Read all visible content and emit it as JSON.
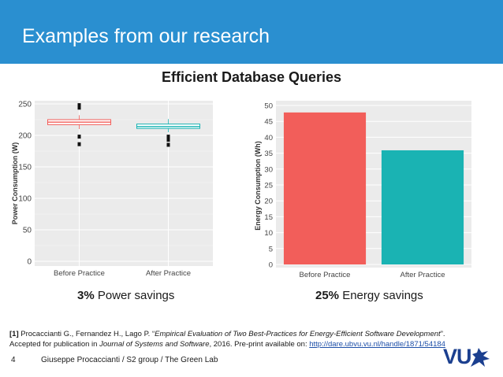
{
  "header": {
    "title": "Examples from our research"
  },
  "subtitle": "Efficient Database Queries",
  "colors": {
    "header_bg": "#2a8fd0",
    "before": "#f25e5a",
    "after": "#1ab3b3",
    "panel": "#ebebeb"
  },
  "chart_data": [
    {
      "type": "box",
      "title": "",
      "xlabel": "",
      "ylabel": "Power Consumption (W)",
      "ylim": [
        0,
        250
      ],
      "yticks": [
        0,
        50,
        100,
        150,
        200,
        250
      ],
      "grid": true,
      "categories": [
        "Before Practice",
        "After Practice"
      ],
      "series": [
        {
          "name": "Before Practice",
          "q1": 217,
          "median": 221,
          "q3": 225,
          "whisker_low": 210,
          "whisker_high": 232,
          "outliers": [
            186,
            198,
            244,
            248
          ]
        },
        {
          "name": "After Practice",
          "q1": 211,
          "median": 214,
          "q3": 218,
          "whisker_low": 205,
          "whisker_high": 226,
          "outliers": [
            185,
            193,
            198
          ]
        }
      ]
    },
    {
      "type": "bar",
      "title": "",
      "xlabel": "",
      "ylabel": "Energy Consumption (Wh)",
      "ylim": [
        0,
        50
      ],
      "yticks": [
        0,
        5,
        10,
        15,
        20,
        25,
        30,
        35,
        40,
        45,
        50
      ],
      "grid": true,
      "categories": [
        "Before Practice",
        "After Practice"
      ],
      "values": [
        47.8,
        35.9
      ]
    }
  ],
  "savings": {
    "power": {
      "pct": "3%",
      "label": " Power savings"
    },
    "energy": {
      "pct": "25%",
      "label": " Energy savings"
    }
  },
  "reference": {
    "marker": "[1]",
    "authors": " Procaccianti G., Fernandez H., Lago P. “",
    "title": "Empirical Evaluation of Two Best-Practices for Energy-Efficient Software Development",
    "title_end": "”.",
    "line2_prefix": "Accepted for publication in ",
    "journal": "Journal of Systems and Software",
    "line2_mid": ", 2016. Pre-print available on: ",
    "url": "http://dare.ubvu.vu.nl/handle/1871/54184"
  },
  "footer": {
    "page": "4",
    "text": "Giuseppe Procaccianti / S2 group / The Green Lab"
  },
  "logo": {
    "text": "VU"
  }
}
